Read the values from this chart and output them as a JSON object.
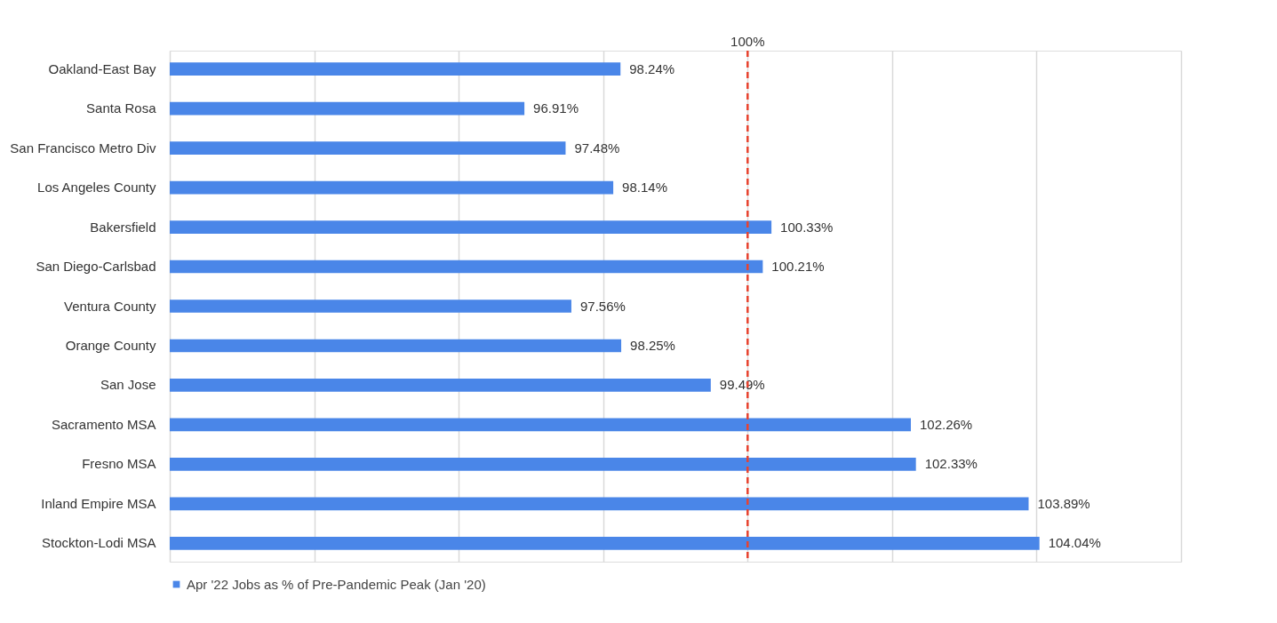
{
  "chart_data": {
    "type": "bar",
    "orientation": "horizontal",
    "categories": [
      "Oakland-East Bay",
      "Santa Rosa",
      "San Francisco Metro Div",
      "Los Angeles County",
      "Bakersfield",
      "San Diego-Carlsbad",
      "Ventura County",
      "Orange County",
      "San Jose",
      "Sacramento MSA",
      "Fresno MSA",
      "Inland Empire MSA",
      "Stockton-Lodi MSA"
    ],
    "series": [
      {
        "name": "Apr '22 Jobs as % of Pre-Pandemic Peak (Jan '20)",
        "color": "#4a86e8",
        "values": [
          98.24,
          96.91,
          97.48,
          98.14,
          100.33,
          100.21,
          97.56,
          98.25,
          99.49,
          102.26,
          102.33,
          103.89,
          104.04
        ],
        "value_labels": [
          "98.24%",
          "96.91%",
          "97.48%",
          "98.14%",
          "100.33%",
          "100.21%",
          "97.56%",
          "98.25%",
          "99.49%",
          "102.26%",
          "102.33%",
          "103.89%",
          "104.04%"
        ]
      }
    ],
    "xlim": [
      92,
      106
    ],
    "xticks": [
      {
        "value": 92,
        "label": null
      },
      {
        "value": 94,
        "label": null
      },
      {
        "value": 96,
        "label": null
      },
      {
        "value": 98,
        "label": null
      },
      {
        "value": 100,
        "label": null
      },
      {
        "value": 102,
        "label": null
      },
      {
        "value": 104,
        "label": null
      },
      {
        "value": 106,
        "label": null
      }
    ],
    "tick_labels": "y",
    "grid": "x",
    "legend": "bottom",
    "ref_lines": [
      {
        "axis": "x",
        "value": 100,
        "label": "100%",
        "color": "#e8432f",
        "line_style": "dashed"
      }
    ]
  }
}
